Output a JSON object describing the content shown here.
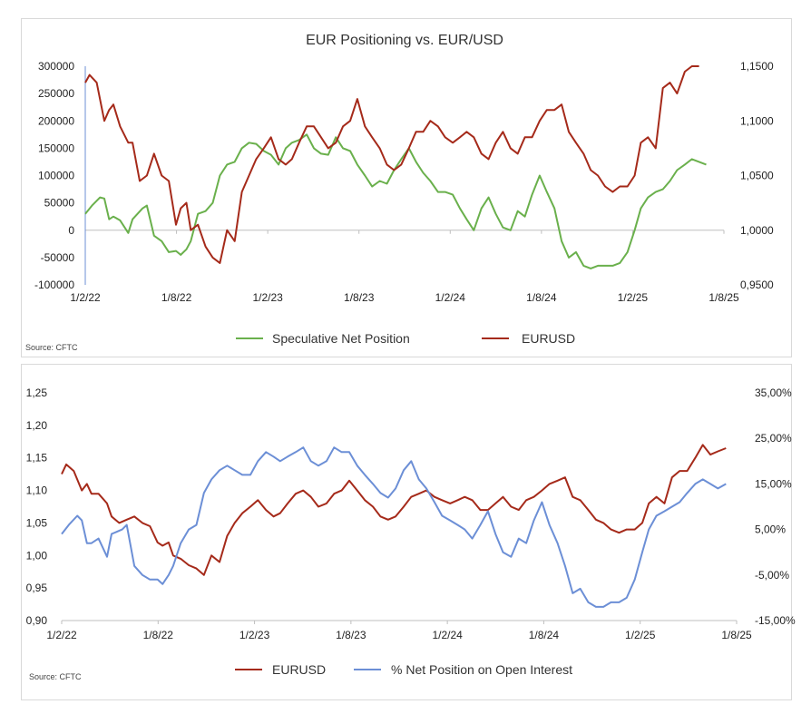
{
  "chart_data": [
    {
      "type": "line",
      "title": "EUR Positioning vs. EUR/USD",
      "source": "Source: CFTC",
      "x_labels": [
        "1/2/22",
        "1/8/22",
        "1/2/23",
        "1/8/23",
        "1/2/24",
        "1/8/24",
        "1/2/25",
        "1/8/25"
      ],
      "x_range": [
        "2022-01-01",
        "2025-08-31"
      ],
      "y_left": {
        "ticks": [
          "300000",
          "250000",
          "200000",
          "150000",
          "100000",
          "50000",
          "0",
          "-50000",
          "-100000"
        ],
        "ylim": [
          -100000,
          300000
        ]
      },
      "y_right": {
        "ticks": [
          "1,1500",
          "1,1000",
          "1,0500",
          "1,0000",
          "0,9500"
        ],
        "ylim": [
          0.95,
          1.15
        ]
      },
      "legend_position": "bottom",
      "series": [
        {
          "name": "Speculative Net Position",
          "axis": "left",
          "color": "#6ab04c",
          "x": [
            "2022-01-01",
            "2022-01-15",
            "2022-02-01",
            "2022-02-10",
            "2022-02-20",
            "2022-03-01",
            "2022-03-15",
            "2022-04-01",
            "2022-04-10",
            "2022-05-01",
            "2022-05-10",
            "2022-05-25",
            "2022-06-10",
            "2022-06-25",
            "2022-07-10",
            "2022-07-20",
            "2022-08-01",
            "2022-08-10",
            "2022-08-25",
            "2022-09-10",
            "2022-09-25",
            "2022-10-10",
            "2022-10-25",
            "2022-11-10",
            "2022-11-25",
            "2022-12-10",
            "2022-12-25",
            "2023-01-10",
            "2023-01-25",
            "2023-02-10",
            "2023-02-25",
            "2023-03-10",
            "2023-03-25",
            "2023-04-10",
            "2023-04-25",
            "2023-05-10",
            "2023-05-25",
            "2023-06-10",
            "2023-06-25",
            "2023-07-10",
            "2023-07-25",
            "2023-08-10",
            "2023-08-25",
            "2023-09-10",
            "2023-09-25",
            "2023-10-10",
            "2023-10-25",
            "2023-11-10",
            "2023-11-25",
            "2023-12-10",
            "2023-12-25",
            "2024-01-10",
            "2024-01-25",
            "2024-02-10",
            "2024-02-25",
            "2024-03-10",
            "2024-03-25",
            "2024-04-10",
            "2024-04-25",
            "2024-05-10",
            "2024-05-25",
            "2024-06-10",
            "2024-06-25",
            "2024-07-10",
            "2024-07-25",
            "2024-08-10",
            "2024-08-25",
            "2024-09-10",
            "2024-09-25",
            "2024-10-10",
            "2024-10-25",
            "2024-11-10",
            "2024-11-25",
            "2024-12-10",
            "2024-12-25",
            "2025-01-10",
            "2025-01-25",
            "2025-02-10",
            "2025-02-25",
            "2025-03-10",
            "2025-03-25",
            "2025-04-10",
            "2025-04-25",
            "2025-05-10",
            "2025-05-25",
            "2025-06-10",
            "2025-06-25",
            "2025-07-10",
            "2025-07-25"
          ],
          "values": [
            30000,
            45000,
            60000,
            58000,
            20000,
            25000,
            18000,
            -5000,
            20000,
            40000,
            45000,
            -10000,
            -20000,
            -40000,
            -38000,
            -45000,
            -35000,
            -20000,
            30000,
            35000,
            50000,
            100000,
            120000,
            125000,
            150000,
            160000,
            158000,
            145000,
            138000,
            120000,
            150000,
            160000,
            165000,
            175000,
            150000,
            140000,
            138000,
            170000,
            150000,
            145000,
            120000,
            100000,
            80000,
            90000,
            85000,
            110000,
            130000,
            150000,
            125000,
            105000,
            90000,
            70000,
            70000,
            65000,
            40000,
            20000,
            0,
            40000,
            60000,
            30000,
            5000,
            0,
            35000,
            25000,
            65000,
            100000,
            70000,
            40000,
            -20000,
            -50000,
            -40000,
            -65000,
            -70000,
            -65000,
            -65000,
            -65000,
            -60000,
            -40000,
            0,
            40000,
            60000,
            70000,
            75000,
            90000,
            110000,
            120000,
            130000,
            125000,
            120000
          ]
        },
        {
          "name": "EURUSD",
          "axis": "right",
          "color": "#a52a1a",
          "x": [
            "2022-01-01",
            "2022-01-10",
            "2022-01-25",
            "2022-02-10",
            "2022-02-20",
            "2022-03-01",
            "2022-03-15",
            "2022-04-01",
            "2022-04-10",
            "2022-04-25",
            "2022-05-10",
            "2022-05-25",
            "2022-06-10",
            "2022-06-25",
            "2022-07-10",
            "2022-07-20",
            "2022-08-01",
            "2022-08-10",
            "2022-08-25",
            "2022-09-10",
            "2022-09-25",
            "2022-10-10",
            "2022-10-25",
            "2022-11-10",
            "2022-11-25",
            "2022-12-10",
            "2022-12-25",
            "2023-01-10",
            "2023-01-25",
            "2023-02-10",
            "2023-02-25",
            "2023-03-10",
            "2023-03-25",
            "2023-04-10",
            "2023-04-25",
            "2023-05-10",
            "2023-05-25",
            "2023-06-10",
            "2023-06-25",
            "2023-07-10",
            "2023-07-25",
            "2023-08-10",
            "2023-08-25",
            "2023-09-10",
            "2023-09-25",
            "2023-10-10",
            "2023-10-25",
            "2023-11-10",
            "2023-11-25",
            "2023-12-10",
            "2023-12-25",
            "2024-01-10",
            "2024-01-25",
            "2024-02-10",
            "2024-02-25",
            "2024-03-10",
            "2024-03-25",
            "2024-04-10",
            "2024-04-25",
            "2024-05-10",
            "2024-05-25",
            "2024-06-10",
            "2024-06-25",
            "2024-07-10",
            "2024-07-25",
            "2024-08-10",
            "2024-08-25",
            "2024-09-10",
            "2024-09-25",
            "2024-10-10",
            "2024-10-25",
            "2024-11-10",
            "2024-11-25",
            "2024-12-10",
            "2024-12-25",
            "2025-01-10",
            "2025-01-25",
            "2025-02-10",
            "2025-02-25",
            "2025-03-10",
            "2025-03-25",
            "2025-04-10",
            "2025-04-25",
            "2025-05-10",
            "2025-05-25",
            "2025-06-10",
            "2025-06-25",
            "2025-07-10"
          ],
          "values": [
            1.135,
            1.142,
            1.135,
            1.1,
            1.11,
            1.115,
            1.095,
            1.08,
            1.08,
            1.045,
            1.05,
            1.07,
            1.05,
            1.045,
            1.005,
            1.02,
            1.025,
            1.0,
            1.005,
            0.985,
            0.975,
            0.97,
            1.0,
            0.99,
            1.035,
            1.05,
            1.065,
            1.075,
            1.085,
            1.065,
            1.06,
            1.065,
            1.08,
            1.095,
            1.095,
            1.085,
            1.075,
            1.08,
            1.095,
            1.1,
            1.12,
            1.095,
            1.085,
            1.075,
            1.06,
            1.055,
            1.06,
            1.075,
            1.09,
            1.09,
            1.1,
            1.095,
            1.085,
            1.08,
            1.085,
            1.09,
            1.085,
            1.07,
            1.065,
            1.08,
            1.09,
            1.075,
            1.07,
            1.085,
            1.085,
            1.1,
            1.11,
            1.11,
            1.115,
            1.09,
            1.08,
            1.07,
            1.055,
            1.05,
            1.04,
            1.035,
            1.04,
            1.04,
            1.05,
            1.08,
            1.085,
            1.075,
            1.13,
            1.135,
            1.125,
            1.145,
            1.15,
            1.15
          ]
        }
      ]
    },
    {
      "type": "line",
      "title": "",
      "source": "Source: CFTC",
      "x_labels": [
        "1/2/22",
        "1/8/22",
        "1/2/23",
        "1/8/23",
        "1/2/24",
        "1/8/24",
        "1/2/25",
        "1/8/25"
      ],
      "x_range": [
        "2022-01-01",
        "2025-08-31"
      ],
      "y_left": {
        "ticks": [
          "1,25",
          "1,20",
          "1,15",
          "1,10",
          "1,05",
          "1,00",
          "0,95",
          "0,90"
        ],
        "ylim": [
          0.9,
          1.25
        ]
      },
      "y_right": {
        "ticks": [
          "35,00%",
          "25,00%",
          "15,00%",
          "5,00%",
          "-5,00%",
          "-15,00%"
        ],
        "ylim": [
          -15,
          35
        ]
      },
      "legend_position": "bottom",
      "series": [
        {
          "name": "EURUSD",
          "axis": "left",
          "color": "#a52a1a",
          "x": [
            "2022-01-01",
            "2022-01-10",
            "2022-01-25",
            "2022-02-10",
            "2022-02-20",
            "2022-03-01",
            "2022-03-15",
            "2022-04-01",
            "2022-04-10",
            "2022-04-25",
            "2022-05-10",
            "2022-05-25",
            "2022-06-10",
            "2022-06-25",
            "2022-07-10",
            "2022-07-20",
            "2022-08-01",
            "2022-08-10",
            "2022-08-25",
            "2022-09-10",
            "2022-09-25",
            "2022-10-10",
            "2022-10-25",
            "2022-11-10",
            "2022-11-25",
            "2022-12-10",
            "2022-12-25",
            "2023-01-10",
            "2023-01-25",
            "2023-02-10",
            "2023-02-25",
            "2023-03-10",
            "2023-03-25",
            "2023-04-10",
            "2023-04-25",
            "2023-05-10",
            "2023-05-25",
            "2023-06-10",
            "2023-06-25",
            "2023-07-10",
            "2023-07-25",
            "2023-08-10",
            "2023-08-25",
            "2023-09-10",
            "2023-09-25",
            "2023-10-10",
            "2023-10-25",
            "2023-11-10",
            "2023-11-25",
            "2023-12-10",
            "2023-12-25",
            "2024-01-10",
            "2024-01-25",
            "2024-02-10",
            "2024-02-25",
            "2024-03-10",
            "2024-03-25",
            "2024-04-10",
            "2024-04-25",
            "2024-05-10",
            "2024-05-25",
            "2024-06-10",
            "2024-06-25",
            "2024-07-10",
            "2024-07-25",
            "2024-08-10",
            "2024-08-25",
            "2024-09-10",
            "2024-09-25",
            "2024-10-10",
            "2024-10-25",
            "2024-11-10",
            "2024-11-25",
            "2024-12-10",
            "2024-12-25",
            "2025-01-10",
            "2025-01-25",
            "2025-02-10",
            "2025-02-25",
            "2025-03-10",
            "2025-03-25",
            "2025-04-10",
            "2025-04-25",
            "2025-05-10",
            "2025-05-25",
            "2025-06-10",
            "2025-06-25",
            "2025-07-10",
            "2025-07-25",
            "2025-08-10"
          ],
          "values": [
            1.125,
            1.14,
            1.13,
            1.1,
            1.11,
            1.095,
            1.095,
            1.08,
            1.06,
            1.05,
            1.055,
            1.06,
            1.05,
            1.045,
            1.02,
            1.015,
            1.02,
            1.0,
            0.995,
            0.985,
            0.98,
            0.97,
            1.0,
            0.99,
            1.03,
            1.05,
            1.065,
            1.075,
            1.085,
            1.07,
            1.06,
            1.065,
            1.08,
            1.095,
            1.1,
            1.09,
            1.075,
            1.08,
            1.095,
            1.1,
            1.115,
            1.1,
            1.085,
            1.075,
            1.06,
            1.055,
            1.06,
            1.075,
            1.09,
            1.095,
            1.1,
            1.09,
            1.085,
            1.08,
            1.085,
            1.09,
            1.085,
            1.07,
            1.07,
            1.08,
            1.09,
            1.075,
            1.07,
            1.085,
            1.09,
            1.1,
            1.11,
            1.115,
            1.12,
            1.09,
            1.085,
            1.07,
            1.055,
            1.05,
            1.04,
            1.035,
            1.04,
            1.04,
            1.05,
            1.08,
            1.09,
            1.08,
            1.12,
            1.13,
            1.13,
            1.15,
            1.17,
            1.155,
            1.16,
            1.165
          ]
        },
        {
          "name": "% Net Position on Open Interest",
          "axis": "right",
          "color": "#6c8fd6",
          "x": [
            "2022-01-01",
            "2022-01-15",
            "2022-02-01",
            "2022-02-10",
            "2022-02-20",
            "2022-03-01",
            "2022-03-15",
            "2022-04-01",
            "2022-04-10",
            "2022-05-01",
            "2022-05-10",
            "2022-05-25",
            "2022-06-10",
            "2022-06-25",
            "2022-07-10",
            "2022-07-20",
            "2022-08-01",
            "2022-08-10",
            "2022-08-25",
            "2022-09-10",
            "2022-09-25",
            "2022-10-10",
            "2022-10-25",
            "2022-11-10",
            "2022-11-25",
            "2022-12-10",
            "2022-12-25",
            "2023-01-10",
            "2023-01-25",
            "2023-02-10",
            "2023-02-25",
            "2023-03-10",
            "2023-03-25",
            "2023-04-10",
            "2023-04-25",
            "2023-05-10",
            "2023-05-25",
            "2023-06-10",
            "2023-06-25",
            "2023-07-10",
            "2023-07-25",
            "2023-08-10",
            "2023-08-25",
            "2023-09-10",
            "2023-09-25",
            "2023-10-10",
            "2023-10-25",
            "2023-11-10",
            "2023-11-25",
            "2023-12-10",
            "2023-12-25",
            "2024-01-10",
            "2024-01-25",
            "2024-02-10",
            "2024-02-25",
            "2024-03-10",
            "2024-03-25",
            "2024-04-10",
            "2024-04-25",
            "2024-05-10",
            "2024-05-25",
            "2024-06-10",
            "2024-06-25",
            "2024-07-10",
            "2024-07-25",
            "2024-08-10",
            "2024-08-25",
            "2024-09-10",
            "2024-09-25",
            "2024-10-10",
            "2024-10-25",
            "2024-11-10",
            "2024-11-25",
            "2024-12-10",
            "2024-12-25",
            "2025-01-10",
            "2025-01-25",
            "2025-02-10",
            "2025-02-25",
            "2025-03-10",
            "2025-03-25",
            "2025-04-10",
            "2025-04-25",
            "2025-05-10",
            "2025-05-25",
            "2025-06-10",
            "2025-06-25",
            "2025-07-10",
            "2025-07-25",
            "2025-08-10"
          ],
          "values": [
            4,
            6,
            8,
            7,
            2,
            2,
            3,
            -1,
            4,
            5,
            6,
            -3,
            -5,
            -6,
            -6,
            -7,
            -5,
            -3,
            2,
            5,
            6,
            13,
            16,
            18,
            19,
            18,
            17,
            17,
            20,
            22,
            21,
            20,
            21,
            22,
            23,
            20,
            19,
            20,
            23,
            22,
            22,
            19,
            17,
            15,
            13,
            12,
            14,
            18,
            20,
            16,
            14,
            11,
            8,
            7,
            6,
            5,
            3,
            6,
            9,
            4,
            0,
            -1,
            3,
            2,
            7,
            11,
            6,
            2,
            -3,
            -9,
            -8,
            -11,
            -12,
            -12,
            -11,
            -11,
            -10,
            -6,
            0,
            5,
            8,
            9,
            10,
            11,
            13,
            15,
            16,
            15,
            14,
            15
          ]
        }
      ]
    }
  ]
}
